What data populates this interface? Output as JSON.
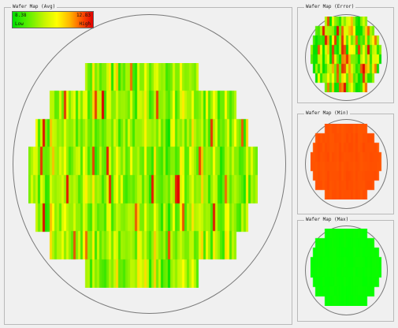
{
  "panels": {
    "avg": {
      "title": "Wafer Map (Avg)"
    },
    "error": {
      "title": "Wafer Map (Error)"
    },
    "min": {
      "title": "Wafer Map (Min)"
    },
    "max": {
      "title": "Wafer Map (Max)"
    }
  },
  "legend": {
    "min_value": "8.38",
    "max_value": "12.83",
    "low_label": "Low",
    "high_label": "High"
  },
  "colors": {
    "background": "#f0f0f0",
    "border": "#b9b9b9",
    "wafer_outline": "#7a7a7a",
    "scale_low": "#00e000",
    "scale_mid": "#ffff00",
    "scale_high": "#e00000"
  }
}
